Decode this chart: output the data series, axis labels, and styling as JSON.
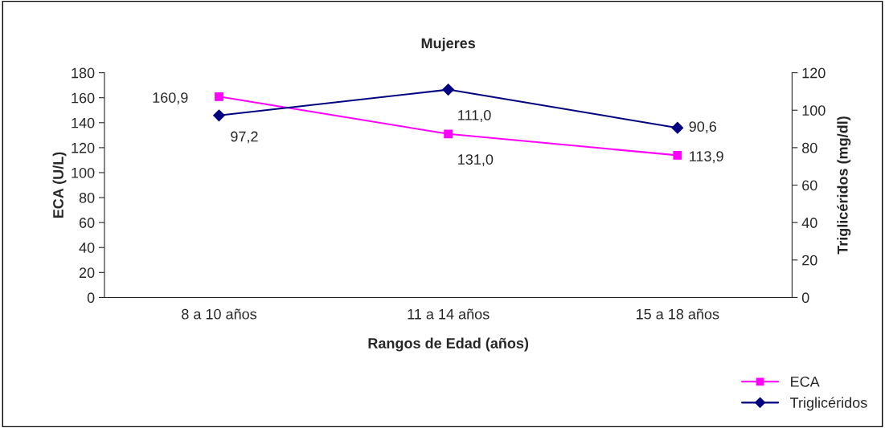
{
  "chart_data": {
    "type": "line",
    "title": "Mujeres",
    "xlabel": "Rangos de Edad (años)",
    "ylabel": "ECA (U/L)",
    "y2label": "Triglicéridos (mg/dl)",
    "categories": [
      "8 a 10 años",
      "11 a 14 años",
      "15 a 18 años"
    ],
    "series": [
      {
        "name": "ECA",
        "color": "#ff00ff",
        "marker": "square",
        "values": [
          160.9,
          131.0,
          113.9
        ],
        "value_labels": [
          "160,9",
          "131,0",
          "113,9"
        ]
      },
      {
        "name": "Triglicéridos",
        "color": "#000080",
        "marker": "diamond",
        "axis": "y2",
        "values": [
          97.2,
          111.0,
          90.6
        ],
        "value_labels": [
          "97,2",
          "111,0",
          "90,6"
        ]
      }
    ],
    "ylim": [
      0,
      180
    ],
    "yticks": [
      0,
      20,
      40,
      60,
      80,
      100,
      120,
      140,
      160,
      180
    ],
    "y2lim": [
      0,
      120
    ],
    "y2ticks": [
      0,
      20,
      40,
      60,
      80,
      100,
      120
    ],
    "grid": false,
    "legend": "bottom right"
  }
}
